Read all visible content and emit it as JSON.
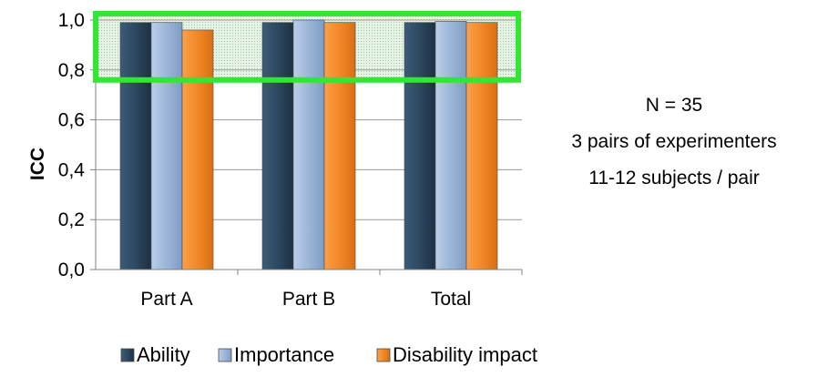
{
  "chart_data": {
    "type": "bar",
    "title": "",
    "xlabel": "",
    "ylabel": "ICC",
    "ylim": [
      0,
      1.0
    ],
    "yticks": [
      "0,0",
      "0,2",
      "0,4",
      "0,6",
      "0,8",
      "1,0"
    ],
    "grid": true,
    "legend_position": "bottom",
    "categories": [
      "Part A",
      "Part B",
      "Total"
    ],
    "series": [
      {
        "name": "Ability",
        "values": [
          0.99,
          0.99,
          0.99
        ],
        "color": "#2e4a63"
      },
      {
        "name": "Importance",
        "values": [
          0.99,
          1.0,
          0.995
        ],
        "color": "#9fb8d9"
      },
      {
        "name": "Disability impact",
        "values": [
          0.96,
          0.99,
          0.99
        ],
        "color": "#f28a2a"
      }
    ],
    "highlight_band": {
      "from": 0.8,
      "to": 1.0,
      "color": "#33e633"
    }
  },
  "annotations": {
    "line1": "N = 35",
    "line2": "3 pairs of experimenters",
    "line3": "11-12 subjects / pair"
  }
}
